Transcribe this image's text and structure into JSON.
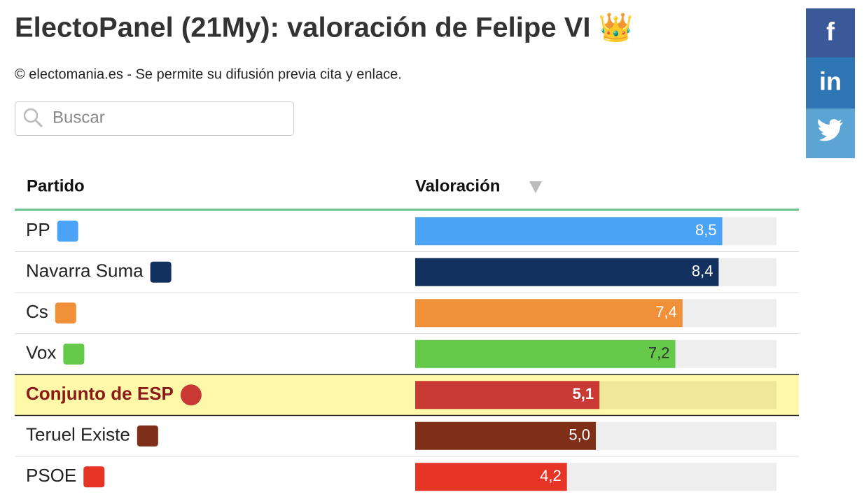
{
  "header": {
    "title": "ElectoPanel (21My): valoración de Felipe VI 👑",
    "subtitle": "© electomania.es - Se permite su difusión previa cita y enlace."
  },
  "search": {
    "placeholder": "Buscar"
  },
  "social": [
    "f",
    "in"
  ],
  "table": {
    "columns": [
      "Partido",
      "Valoración"
    ],
    "xlim": [
      0,
      10
    ],
    "rows": [
      {
        "name": "PP",
        "value": 8.5,
        "value_label": "8,5",
        "color": "#4ba3f5",
        "label_color": "#ffffff"
      },
      {
        "name": "Navarra Suma",
        "value": 8.4,
        "value_label": "8,4",
        "color": "#12315f",
        "label_color": "#ffffff"
      },
      {
        "name": "Cs",
        "value": 7.4,
        "value_label": "7,4",
        "color": "#f0913a",
        "label_color": "#ffffff"
      },
      {
        "name": "Vox",
        "value": 7.2,
        "value_label": "7,2",
        "color": "#65c94a",
        "label_color": "#333333"
      },
      {
        "name": "Conjunto de ESP",
        "value": 5.1,
        "value_label": "5,1",
        "color": "#c83a33",
        "label_color": "#ffffff",
        "highlight": true
      },
      {
        "name": "Teruel Existe",
        "value": 5.0,
        "value_label": "5,0",
        "color": "#7f2f18",
        "label_color": "#ffffff"
      },
      {
        "name": "PSOE",
        "value": 4.2,
        "value_label": "4,2",
        "color": "#e63427",
        "label_color": "#ffffff"
      }
    ]
  }
}
